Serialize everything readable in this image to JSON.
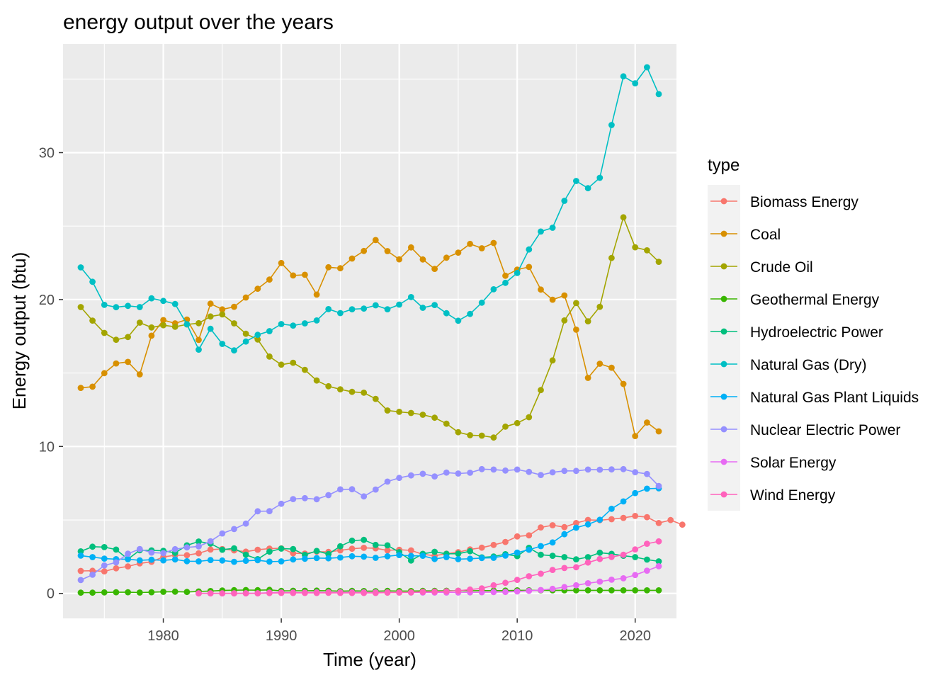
{
  "chart_data": {
    "type": "line",
    "title": "energy output over the years",
    "xlabel": "Time (year)",
    "ylabel": "Energy output (btu)",
    "xlim": [
      1971.5,
      2023.5
    ],
    "ylim": [
      -1.7,
      37.4
    ],
    "x_ticks": [
      1980,
      1990,
      2000,
      2010,
      2020
    ],
    "y_ticks": [
      0,
      10,
      20,
      30
    ],
    "grid": true,
    "markers": true,
    "legend": {
      "title": "type",
      "position": "right"
    },
    "series": [
      {
        "name": "Biomass Energy",
        "color": "#F8766D",
        "start": 1973,
        "values": [
          1.53,
          1.54,
          1.5,
          1.71,
          1.84,
          2.04,
          2.15,
          2.48,
          2.6,
          2.6,
          2.73,
          2.98,
          3.02,
          2.93,
          2.84,
          2.97,
          3.05,
          3.07,
          2.73,
          2.71,
          2.84,
          2.82,
          2.93,
          3.04,
          3.1,
          3.07,
          2.93,
          2.97,
          2.93,
          2.66,
          2.56,
          2.7,
          2.81,
          2.99,
          3.11,
          3.3,
          3.5,
          3.88,
          3.95,
          4.49,
          4.64,
          4.51,
          4.79,
          5.0,
          4.98,
          5.05,
          5.14,
          5.27,
          5.19,
          4.79,
          4.99,
          4.68
        ]
      },
      {
        "name": "Coal",
        "color": "#D89000",
        "start": 1973,
        "values": [
          13.99,
          14.07,
          14.99,
          15.65,
          15.76,
          14.91,
          17.54,
          18.6,
          18.38,
          18.64,
          17.25,
          19.72,
          19.33,
          19.51,
          20.14,
          20.74,
          21.36,
          22.49,
          21.64,
          21.69,
          20.34,
          22.2,
          22.13,
          22.79,
          23.31,
          24.05,
          23.3,
          22.74,
          23.55,
          22.73,
          22.09,
          22.85,
          23.19,
          23.79,
          23.49,
          23.85,
          21.62,
          22.04,
          22.22,
          20.68,
          19.99,
          20.28,
          17.95,
          14.67,
          15.63,
          15.36,
          14.26,
          10.71,
          11.63,
          11.03
        ]
      },
      {
        "name": "Crude Oil",
        "color": "#A3A500",
        "start": 1973,
        "values": [
          19.49,
          18.57,
          17.73,
          17.26,
          17.45,
          18.43,
          18.1,
          18.25,
          18.15,
          18.31,
          18.39,
          18.85,
          18.99,
          18.38,
          17.67,
          17.28,
          16.12,
          15.57,
          15.7,
          15.22,
          14.49,
          14.1,
          13.89,
          13.72,
          13.66,
          13.24,
          12.45,
          12.36,
          12.28,
          12.16,
          11.96,
          11.55,
          10.97,
          10.77,
          10.74,
          10.61,
          11.35,
          11.59,
          11.99,
          13.84,
          15.86,
          18.58,
          19.76,
          18.52,
          19.51,
          22.83,
          25.6,
          23.56,
          23.35,
          22.57
        ]
      },
      {
        "name": "Geothermal Energy",
        "color": "#39B600",
        "start": 1973,
        "values": [
          0.05,
          0.05,
          0.07,
          0.08,
          0.08,
          0.06,
          0.08,
          0.11,
          0.12,
          0.1,
          0.13,
          0.16,
          0.2,
          0.22,
          0.23,
          0.22,
          0.24,
          0.17,
          0.18,
          0.18,
          0.19,
          0.18,
          0.15,
          0.17,
          0.16,
          0.15,
          0.17,
          0.16,
          0.16,
          0.17,
          0.17,
          0.18,
          0.18,
          0.18,
          0.19,
          0.19,
          0.19,
          0.21,
          0.21,
          0.21,
          0.21,
          0.21,
          0.21,
          0.21,
          0.21,
          0.21,
          0.21,
          0.21,
          0.21,
          0.21
        ]
      },
      {
        "name": "Hydroelectric Power",
        "color": "#00BF7D",
        "start": 1973,
        "values": [
          2.86,
          3.18,
          3.15,
          2.98,
          2.33,
          2.94,
          2.93,
          2.9,
          2.76,
          3.27,
          3.53,
          3.39,
          2.97,
          3.07,
          2.63,
          2.33,
          2.84,
          3.05,
          3.02,
          2.62,
          2.89,
          2.68,
          3.21,
          3.59,
          3.64,
          3.3,
          3.27,
          2.81,
          2.24,
          2.69,
          2.83,
          2.69,
          2.7,
          2.87,
          2.45,
          2.51,
          2.67,
          2.54,
          3.1,
          2.63,
          2.56,
          2.47,
          2.32,
          2.47,
          2.77,
          2.69,
          2.56,
          2.47,
          2.3,
          2.18
        ]
      },
      {
        "name": "Natural Gas (Dry)",
        "color": "#00BFC4",
        "start": 1973,
        "values": [
          22.19,
          21.21,
          19.64,
          19.48,
          19.57,
          19.49,
          20.08,
          19.91,
          19.7,
          18.32,
          16.59,
          18.01,
          16.98,
          16.54,
          17.14,
          17.6,
          17.85,
          18.33,
          18.23,
          18.38,
          18.58,
          19.35,
          19.08,
          19.34,
          19.39,
          19.61,
          19.34,
          19.66,
          20.17,
          19.44,
          19.63,
          19.07,
          18.56,
          19.02,
          19.79,
          20.7,
          21.14,
          21.81,
          23.41,
          24.63,
          24.89,
          26.72,
          28.07,
          27.58,
          28.29,
          31.88,
          35.19,
          34.72,
          35.81,
          33.98
        ]
      },
      {
        "name": "Natural Gas Plant Liquids",
        "color": "#00B0F6",
        "start": 1973,
        "values": [
          2.57,
          2.47,
          2.37,
          2.33,
          2.33,
          2.25,
          2.29,
          2.25,
          2.31,
          2.19,
          2.18,
          2.27,
          2.24,
          2.15,
          2.22,
          2.26,
          2.16,
          2.18,
          2.31,
          2.36,
          2.41,
          2.39,
          2.44,
          2.53,
          2.5,
          2.42,
          2.53,
          2.61,
          2.55,
          2.56,
          2.34,
          2.47,
          2.33,
          2.36,
          2.41,
          2.42,
          2.57,
          2.78,
          2.97,
          3.22,
          3.47,
          4.03,
          4.47,
          4.7,
          5.01,
          5.76,
          6.26,
          6.83,
          7.13,
          7.15
        ]
      },
      {
        "name": "Nuclear Electric Power",
        "color": "#9590FF",
        "start": 1973,
        "values": [
          0.91,
          1.27,
          1.9,
          2.11,
          2.7,
          3.02,
          2.78,
          2.74,
          3.01,
          3.13,
          3.2,
          3.55,
          4.08,
          4.38,
          4.75,
          5.59,
          5.6,
          6.1,
          6.42,
          6.48,
          6.41,
          6.69,
          7.08,
          7.09,
          6.6,
          7.07,
          7.61,
          7.86,
          8.03,
          8.14,
          7.96,
          8.22,
          8.16,
          8.21,
          8.46,
          8.43,
          8.36,
          8.43,
          8.27,
          8.06,
          8.24,
          8.34,
          8.34,
          8.43,
          8.42,
          8.44,
          8.46,
          8.25,
          8.13,
          7.31
        ]
      },
      {
        "name": "Solar Energy",
        "color": "#E76BF3",
        "start": 1983,
        "values": [
          0.0,
          0.0,
          0.0,
          0.0,
          0.01,
          0.01,
          0.05,
          0.06,
          0.06,
          0.06,
          0.07,
          0.07,
          0.07,
          0.07,
          0.07,
          0.07,
          0.07,
          0.06,
          0.06,
          0.06,
          0.06,
          0.06,
          0.06,
          0.07,
          0.08,
          0.09,
          0.1,
          0.13,
          0.17,
          0.23,
          0.31,
          0.43,
          0.55,
          0.69,
          0.8,
          0.93,
          1.03,
          1.25,
          1.55,
          1.85
        ]
      },
      {
        "name": "Wind Energy",
        "color": "#FF62BC",
        "start": 1983,
        "values": [
          0.0,
          0.0,
          0.0,
          0.0,
          0.0,
          0.0,
          0.02,
          0.03,
          0.03,
          0.03,
          0.03,
          0.04,
          0.03,
          0.03,
          0.03,
          0.03,
          0.05,
          0.06,
          0.07,
          0.11,
          0.12,
          0.14,
          0.18,
          0.26,
          0.34,
          0.55,
          0.72,
          0.92,
          1.17,
          1.34,
          1.6,
          1.73,
          1.78,
          2.1,
          2.34,
          2.48,
          2.63,
          2.99,
          3.38,
          3.54
        ]
      }
    ]
  }
}
